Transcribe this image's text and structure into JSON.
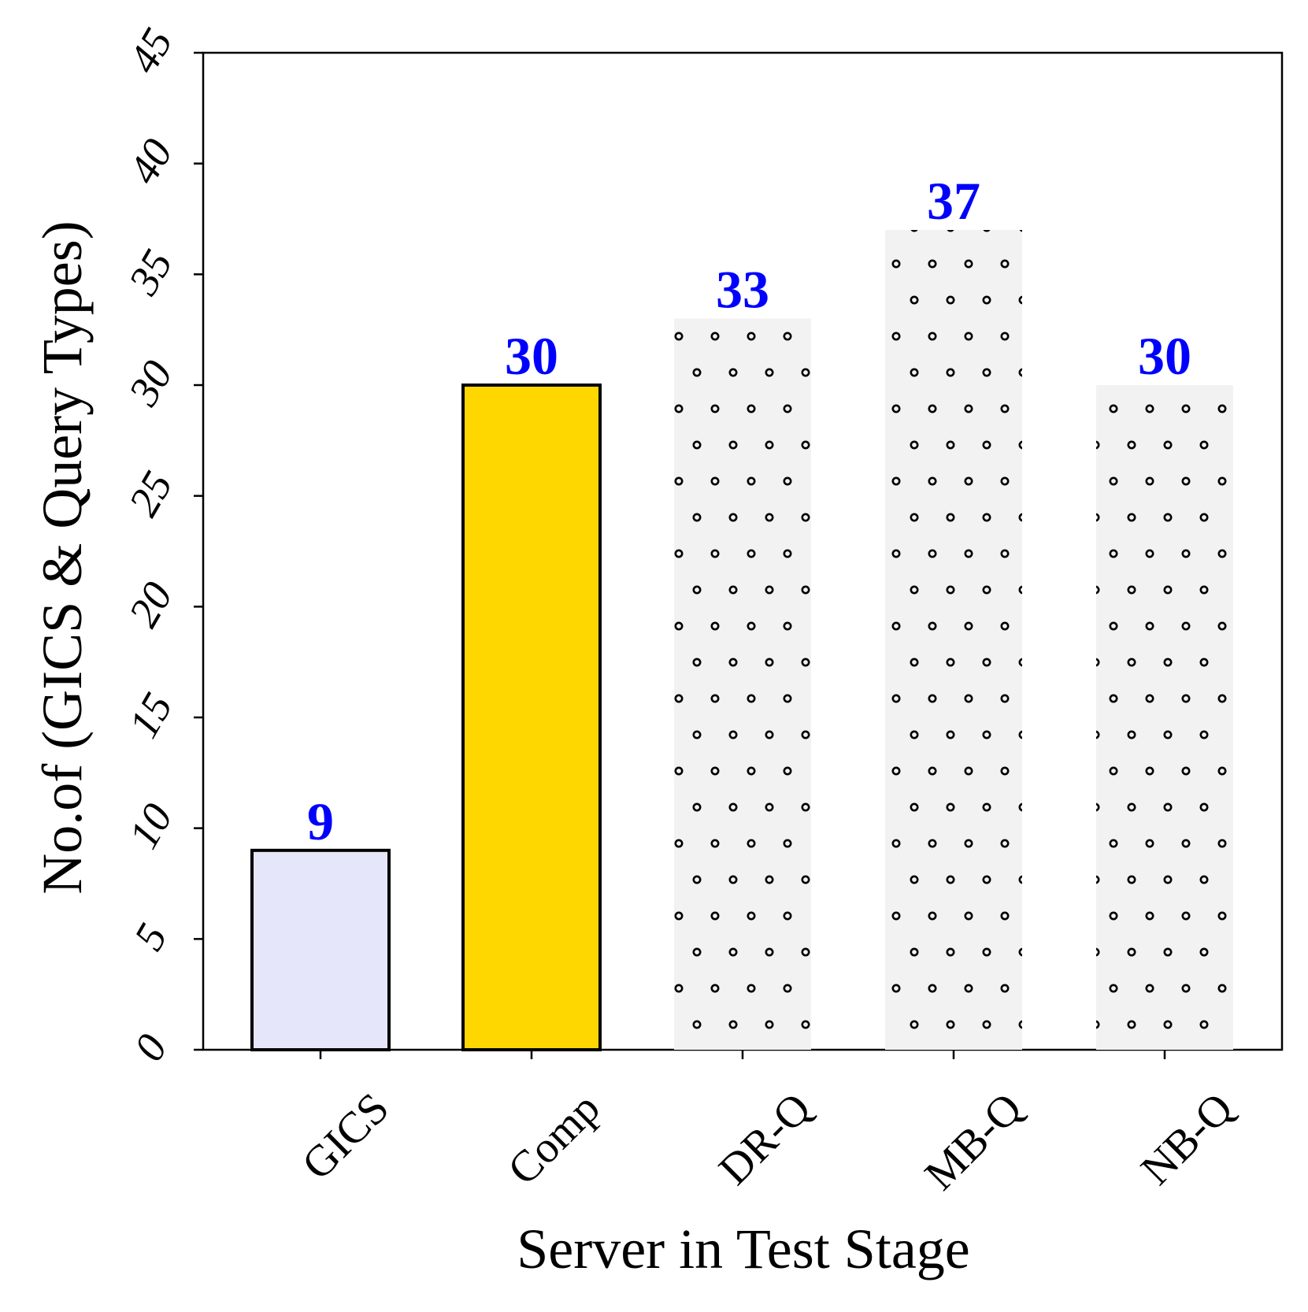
{
  "chart_data": {
    "type": "bar",
    "title": "",
    "xlabel": "Server in Test Stage",
    "ylabel": "No.of (GICS & Query Types)",
    "categories": [
      "GICS",
      "Comp",
      "DR-Q",
      "MB-Q",
      "NB-Q"
    ],
    "values": [
      9,
      30,
      33,
      37,
      30
    ],
    "data_labels": [
      "9",
      "30",
      "33",
      "37",
      "30"
    ],
    "ylim": [
      0,
      45
    ],
    "yticks": [
      0,
      5,
      10,
      15,
      20,
      25,
      30,
      35,
      40,
      45
    ],
    "ytick_labels": [
      "0",
      "5",
      "10",
      "15",
      "20",
      "25",
      "30",
      "35",
      "40",
      "45"
    ],
    "grid": false,
    "legend": "none",
    "bar_styles": [
      {
        "fill": "#e6e6fa",
        "edge": "#000000",
        "pattern": "none"
      },
      {
        "fill": "#ffd700",
        "edge": "#000000",
        "pattern": "none"
      },
      {
        "fill": "#f2f2f2",
        "edge": "none",
        "pattern": "circles"
      },
      {
        "fill": "#f2f2f2",
        "edge": "none",
        "pattern": "circles"
      },
      {
        "fill": "#f2f2f2",
        "edge": "none",
        "pattern": "circles"
      }
    ],
    "label_color": "#0000ff"
  }
}
